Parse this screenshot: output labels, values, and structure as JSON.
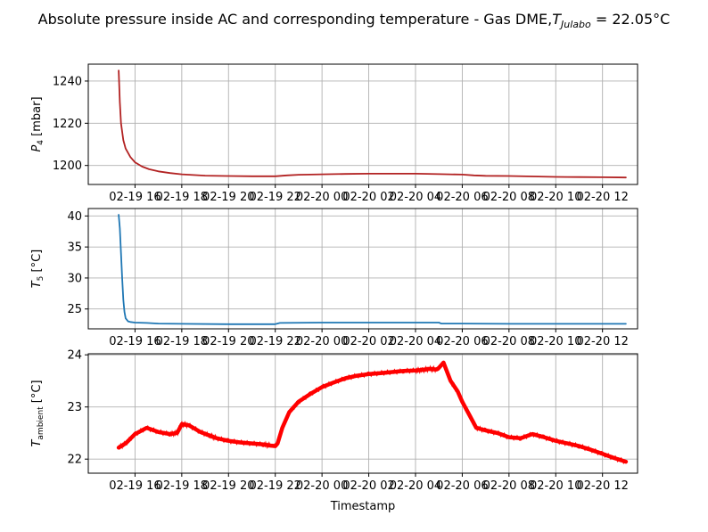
{
  "figure": {
    "title_main": "Absolute pressure inside AC and corresponding temperature - Gas DME,",
    "title_symbol": "T",
    "title_subscript": "Julabo",
    "title_value": " = 22.05°C"
  },
  "chart_data": [
    {
      "type": "line",
      "ylabel_symbol": "P",
      "ylabel_subscript": "4",
      "ylabel_unit": " [mbar]",
      "xlabel": "",
      "x_unit": "hours since 2024-02-19 00:00 (axis prints MM-DD HH)",
      "xlim": [
        14.0,
        37.5
      ],
      "ylim": [
        1191,
        1248
      ],
      "yticks": [
        1200,
        1220,
        1240
      ],
      "xticks": [
        16,
        18,
        20,
        22,
        24,
        26,
        28,
        30,
        32,
        34,
        36
      ],
      "xtick_labels": [
        "02-19 16",
        "02-19 18",
        "02-19 20",
        "02-19 22",
        "02-20 00",
        "02-20 02",
        "02-20 04",
        "02-20 06",
        "02-20 08",
        "02-20 10",
        "02-20 12"
      ],
      "grid": true,
      "series": [
        {
          "color": "#b22222",
          "x": [
            15.3,
            15.35,
            15.4,
            15.5,
            15.6,
            15.8,
            16.0,
            16.3,
            16.6,
            17.0,
            17.5,
            18.0,
            19.0,
            20.0,
            21.0,
            22.0,
            22.5,
            23.0,
            24.0,
            25.0,
            26.0,
            27.0,
            28.0,
            29.0,
            30.0,
            30.5,
            31.0,
            32.0,
            33.0,
            34.0,
            35.0,
            36.0,
            37.0
          ],
          "y": [
            1245,
            1230,
            1220,
            1212,
            1208,
            1204,
            1201.5,
            1199.5,
            1198.2,
            1197.2,
            1196.4,
            1195.8,
            1195.2,
            1195.0,
            1194.9,
            1194.9,
            1195.3,
            1195.6,
            1195.8,
            1196.0,
            1196.1,
            1196.1,
            1196.1,
            1195.9,
            1195.7,
            1195.3,
            1195.1,
            1195.0,
            1194.8,
            1194.6,
            1194.5,
            1194.4,
            1194.3
          ]
        }
      ]
    },
    {
      "type": "line",
      "ylabel_symbol": "T",
      "ylabel_subscript": "5",
      "ylabel_unit": " [°C]",
      "xlabel": "",
      "xlim": [
        14.0,
        37.5
      ],
      "ylim": [
        21.8,
        41.2
      ],
      "yticks": [
        25,
        30,
        35,
        40
      ],
      "xticks": [
        16,
        18,
        20,
        22,
        24,
        26,
        28,
        30,
        32,
        34,
        36
      ],
      "xtick_labels": [
        "02-19 16",
        "02-19 18",
        "02-19 20",
        "02-19 22",
        "02-20 00",
        "02-20 02",
        "02-20 04",
        "02-20 06",
        "02-20 08",
        "02-20 10",
        "02-20 12"
      ],
      "grid": true,
      "series": [
        {
          "color": "#1f77b4",
          "x": [
            15.3,
            15.35,
            15.4,
            15.45,
            15.5,
            15.55,
            15.6,
            15.7,
            15.8,
            16.0,
            16.5,
            17.0,
            18.0,
            20.0,
            22.0,
            22.2,
            24.0,
            26.0,
            28.0,
            29.0,
            29.1,
            30.0,
            32.0,
            34.0,
            36.0,
            37.0
          ],
          "y": [
            40.2,
            38.0,
            34.0,
            30.0,
            26.5,
            24.5,
            23.5,
            23.0,
            22.9,
            22.8,
            22.75,
            22.65,
            22.6,
            22.55,
            22.55,
            22.75,
            22.8,
            22.8,
            22.8,
            22.8,
            22.65,
            22.65,
            22.6,
            22.6,
            22.6,
            22.6
          ]
        }
      ]
    },
    {
      "type": "line",
      "ylabel_symbol": "T",
      "ylabel_subscript": "ambient",
      "ylabel_unit": " [°C]",
      "xlabel": "Timestamp",
      "xlim": [
        14.0,
        37.5
      ],
      "ylim": [
        21.73,
        24.02
      ],
      "yticks": [
        22,
        23,
        24
      ],
      "xticks": [
        16,
        18,
        20,
        22,
        24,
        26,
        28,
        30,
        32,
        34,
        36
      ],
      "xtick_labels": [
        "02-19 16",
        "02-19 18",
        "02-19 20",
        "02-19 22",
        "02-20 00",
        "02-20 02",
        "02-20 04",
        "02-20 06",
        "02-20 08",
        "02-20 10",
        "02-20 12"
      ],
      "grid": true,
      "series": [
        {
          "color": "#ff0000",
          "x": [
            15.3,
            15.6,
            16.0,
            16.5,
            17.0,
            17.5,
            17.8,
            18.0,
            18.3,
            18.8,
            19.2,
            19.5,
            20.0,
            20.5,
            21.0,
            21.5,
            21.8,
            22.0,
            22.1,
            22.3,
            22.6,
            23.0,
            23.5,
            24.0,
            24.5,
            25.0,
            25.5,
            26.0,
            26.5,
            27.0,
            27.5,
            28.0,
            28.3,
            28.6,
            28.9,
            29.0,
            29.2,
            29.5,
            29.8,
            30.0,
            30.3,
            30.6,
            31.0,
            31.5,
            32.0,
            32.5,
            33.0,
            33.5,
            34.0,
            34.5,
            35.0,
            35.5,
            36.0,
            36.5,
            37.0
          ],
          "y": [
            22.22,
            22.3,
            22.48,
            22.6,
            22.52,
            22.48,
            22.5,
            22.67,
            22.65,
            22.52,
            22.45,
            22.4,
            22.35,
            22.32,
            22.3,
            22.28,
            22.26,
            22.25,
            22.3,
            22.6,
            22.9,
            23.1,
            23.25,
            23.38,
            23.47,
            23.55,
            23.6,
            23.63,
            23.65,
            23.67,
            23.69,
            23.7,
            23.71,
            23.73,
            23.72,
            23.75,
            23.85,
            23.5,
            23.3,
            23.1,
            22.85,
            22.6,
            22.55,
            22.5,
            22.42,
            22.4,
            22.48,
            22.42,
            22.35,
            22.3,
            22.25,
            22.18,
            22.1,
            22.02,
            21.95
          ]
        }
      ]
    }
  ]
}
